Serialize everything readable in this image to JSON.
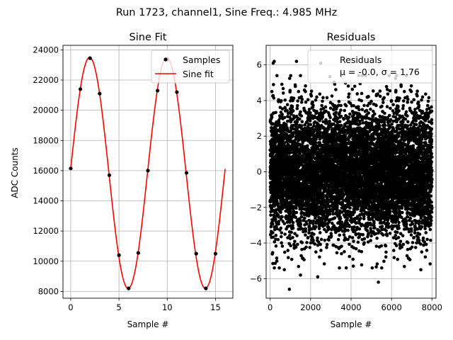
{
  "suptitle": "Run 1723, channel1, Sine Freq.: 4.985 MHz",
  "chart_data": [
    {
      "type": "line",
      "title": "Sine Fit",
      "xlabel": "Sample #",
      "ylabel": "ADC Counts",
      "xlim": [
        -0.8,
        16.8
      ],
      "ylim": [
        7550,
        24300
      ],
      "xticks": [
        0,
        5,
        10,
        15
      ],
      "yticks": [
        8000,
        10000,
        12000,
        14000,
        16000,
        18000,
        20000,
        22000,
        24000
      ],
      "grid": true,
      "legend": {
        "position": "top-right",
        "entries": [
          "Samples",
          "Sine fit"
        ]
      },
      "series": [
        {
          "name": "Samples",
          "kind": "scatter",
          "color": "#000000",
          "x": [
            0,
            1,
            2,
            3,
            4,
            5,
            6,
            7,
            8,
            9,
            10,
            11,
            12,
            13,
            14,
            15
          ],
          "y": [
            16150,
            21400,
            23450,
            21100,
            15700,
            10400,
            8200,
            10550,
            16000,
            21300,
            23350,
            21200,
            15850,
            10500,
            8200,
            10500
          ]
        },
        {
          "name": "Sine fit",
          "kind": "line",
          "color": "#ff0000",
          "fit": {
            "offset": 15850,
            "amplitude": 7650,
            "period": 8.0,
            "phase": 0.035,
            "x_start": 0,
            "x_end": 16
          }
        }
      ]
    },
    {
      "type": "scatter",
      "title": "Residuals",
      "xlabel": "Sample #",
      "ylabel": "",
      "xlim": [
        -200,
        8200
      ],
      "ylim": [
        -7.1,
        7.1
      ],
      "xticks": [
        0,
        2000,
        4000,
        6000,
        8000
      ],
      "yticks": [
        -6,
        -4,
        -2,
        0,
        2,
        4,
        6
      ],
      "grid": true,
      "legend": {
        "position": "top-right",
        "entries": [
          "Residuals",
          "μ = -0.0, σ = 1.76"
        ]
      },
      "series": [
        {
          "name": "Residuals",
          "color": "#000000",
          "stats": {
            "mean": -0.0,
            "sigma": 1.76,
            "n_points": 8000,
            "x_min": 0,
            "x_max": 7999
          },
          "outliers": [
            [
              150,
              6.1
            ],
            [
              200,
              6.2
            ],
            [
              1300,
              6.2
            ],
            [
              2500,
              6.1
            ],
            [
              950,
              -6.6
            ],
            [
              5350,
              -6.2
            ],
            [
              2350,
              -5.9
            ],
            [
              1500,
              -5.8
            ],
            [
              700,
              -5.5
            ],
            [
              7450,
              -5.5
            ]
          ]
        }
      ]
    }
  ]
}
